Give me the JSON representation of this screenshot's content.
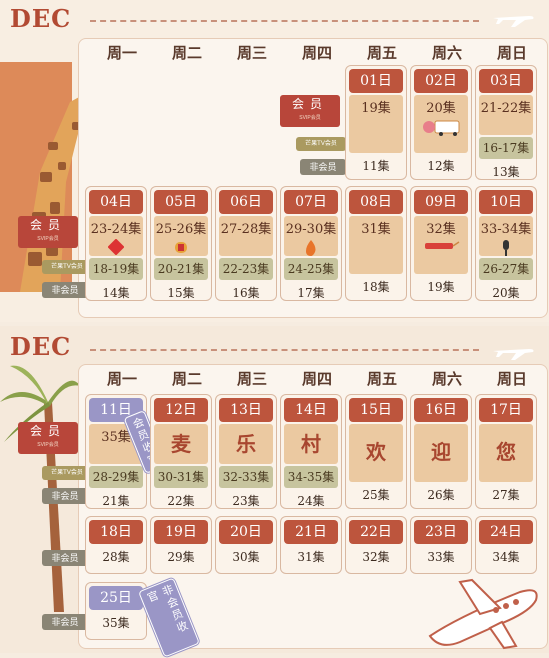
{
  "sections": [
    {
      "month": "DEC",
      "weekdays": [
        "周一",
        "周二",
        "周三",
        "周四",
        "周五",
        "周六",
        "周日"
      ],
      "labels": {
        "member": "会员",
        "member_sub": "SVIP会员",
        "gold_sub": "芒果TV会员",
        "non_member": "非会员"
      },
      "week1": [
        {
          "date": "01日",
          "member": "19集",
          "nonmember": "11集"
        },
        {
          "date": "02日",
          "member": "20集",
          "nonmember": "12集"
        },
        {
          "date": "03日",
          "member": "21-22集",
          "gold": "16-17集",
          "nonmember": "13集"
        }
      ],
      "week2": [
        {
          "date": "04日",
          "member": "23-24集",
          "gold": "18-19集",
          "nonmember": "14集"
        },
        {
          "date": "05日",
          "member": "25-26集",
          "gold": "20-21集",
          "nonmember": "15集"
        },
        {
          "date": "06日",
          "member": "27-28集",
          "gold": "22-23集",
          "nonmember": "16集"
        },
        {
          "date": "07日",
          "member": "29-30集",
          "gold": "24-25集",
          "nonmember": "17集"
        },
        {
          "date": "08日",
          "member": "31集",
          "nonmember": "18集"
        },
        {
          "date": "09日",
          "member": "32集",
          "nonmember": "19集"
        },
        {
          "date": "10日",
          "member": "33-34集",
          "gold": "26-27集",
          "nonmember": "20集"
        }
      ]
    },
    {
      "month": "DEC",
      "weekdays": [
        "周一",
        "周二",
        "周三",
        "周四",
        "周五",
        "周六",
        "周日"
      ],
      "labels": {
        "member": "会员",
        "member_sub": "SVIP会员",
        "gold_sub": "芒果TV会员",
        "non_member": "非会员"
      },
      "week3": [
        {
          "date": "11日",
          "member": "35集",
          "gold": "28-29集",
          "nonmember": "21集"
        },
        {
          "date": "12日",
          "big": "麦",
          "gold": "30-31集",
          "nonmember": "22集"
        },
        {
          "date": "13日",
          "big": "乐",
          "gold": "32-33集",
          "nonmember": "23集"
        },
        {
          "date": "14日",
          "big": "村",
          "gold": "34-35集",
          "nonmember": "24集"
        },
        {
          "date": "15日",
          "big": "欢",
          "nonmember": "25集"
        },
        {
          "date": "16日",
          "big": "迎",
          "nonmember": "26集"
        },
        {
          "date": "17日",
          "big": "您",
          "nonmember": "27集"
        }
      ],
      "week4": [
        {
          "date": "18日",
          "nonmember": "28集"
        },
        {
          "date": "19日",
          "nonmember": "29集"
        },
        {
          "date": "20日",
          "nonmember": "30集"
        },
        {
          "date": "21日",
          "nonmember": "31集"
        },
        {
          "date": "22日",
          "nonmember": "32集"
        },
        {
          "date": "23日",
          "nonmember": "33集"
        },
        {
          "date": "24日",
          "nonmember": "34集"
        }
      ],
      "week5": [
        {
          "date": "25日",
          "nonmember": "35集"
        }
      ],
      "stamps": {
        "member_finale": "会员收官",
        "nonmember_finale": "非会员收官"
      }
    }
  ]
}
